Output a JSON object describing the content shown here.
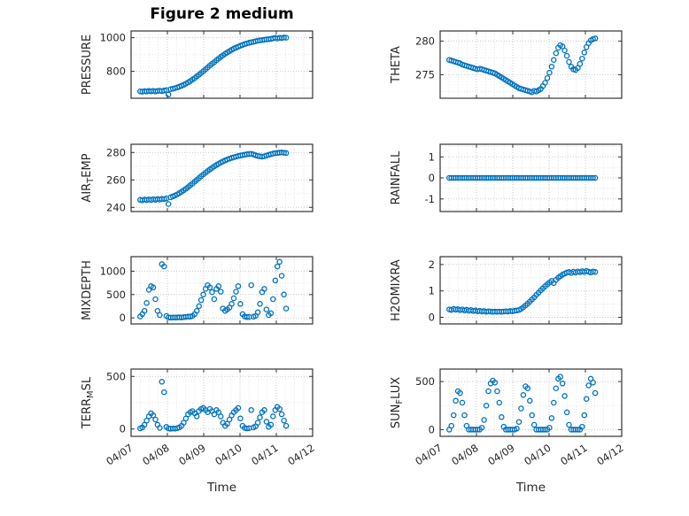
{
  "title": "Figure 2 medium",
  "figure": {
    "bg": "#ffffff",
    "marker_color": "#0072BD",
    "axis_color": "#333333",
    "grid_color": "#c9c9c9",
    "minor_grid_color": "#e7e7e7",
    "text_color": "#262626"
  },
  "chart_data": {
    "type": "scatter",
    "title": "Figure 2 medium",
    "xlabel": "Time",
    "x_tick_labels": [
      "04/07",
      "04/08",
      "04/09",
      "04/10",
      "04/11",
      "04/12"
    ],
    "xlim": [
      0,
      5
    ],
    "x_unit": "days since 04/07",
    "legend": "none",
    "grid": "on",
    "marker": "open-circle",
    "x": [
      0.25,
      0.31,
      0.37,
      0.43,
      0.49,
      0.55,
      0.61,
      0.67,
      0.73,
      0.79,
      0.85,
      0.91,
      0.97,
      1.03,
      1.09,
      1.15,
      1.21,
      1.27,
      1.33,
      1.39,
      1.45,
      1.51,
      1.57,
      1.63,
      1.69,
      1.75,
      1.81,
      1.87,
      1.93,
      1.99,
      2.05,
      2.11,
      2.17,
      2.23,
      2.29,
      2.35,
      2.41,
      2.47,
      2.53,
      2.59,
      2.65,
      2.71,
      2.77,
      2.83,
      2.89,
      2.95,
      3.01,
      3.07,
      3.13,
      3.19,
      3.25,
      3.31,
      3.37,
      3.43,
      3.49,
      3.55,
      3.61,
      3.67,
      3.73,
      3.79,
      3.85,
      3.91,
      3.97,
      4.03,
      4.09,
      4.15,
      4.21,
      4.27
    ],
    "subplots": [
      {
        "name": "PRESSURE",
        "col": 0,
        "row": 0,
        "ylabel": [
          {
            "text": "PRESSURE",
            "sub": false
          }
        ],
        "yticks": [
          800,
          1000
        ],
        "ylim": [
          640,
          1040
        ],
        "y": [
          681,
          679,
          682,
          680,
          683,
          681,
          684,
          680,
          683,
          685,
          682,
          686,
          688,
          662,
          694,
          697,
          700,
          704,
          709,
          714,
          720,
          727,
          734,
          742,
          751,
          760,
          770,
          780,
          790,
          801,
          812,
          823,
          834,
          845,
          855,
          866,
          876,
          886,
          895,
          904,
          912,
          920,
          928,
          935,
          941,
          947,
          952,
          957,
          962,
          966,
          970,
          973,
          976,
          979,
          982,
          984,
          986,
          988,
          990,
          991,
          993,
          996,
          999,
          995,
          1000,
          998,
          1001,
          1000
        ]
      },
      {
        "name": "THETA",
        "col": 1,
        "row": 0,
        "ylabel": [
          {
            "text": "THETA",
            "sub": false
          }
        ],
        "yticks": [
          275,
          280
        ],
        "ylim": [
          271.5,
          281.5
        ],
        "y": [
          277.2,
          277.1,
          277.0,
          276.9,
          276.8,
          276.7,
          276.5,
          276.4,
          276.3,
          276.2,
          276.1,
          276.0,
          275.9,
          275.8,
          275.9,
          275.8,
          275.7,
          275.6,
          275.5,
          275.4,
          275.3,
          275.2,
          275.0,
          274.8,
          274.6,
          274.4,
          274.2,
          274.0,
          273.8,
          273.6,
          273.4,
          273.2,
          273.0,
          272.9,
          272.8,
          272.7,
          272.6,
          272.5,
          272.4,
          272.6,
          272.5,
          272.7,
          272.9,
          273.3,
          273.8,
          274.5,
          275.3,
          276.2,
          277.2,
          278.2,
          279.0,
          279.4,
          279.2,
          278.6,
          277.8,
          276.9,
          276.2,
          275.8,
          275.7,
          276.0,
          276.6,
          277.4,
          278.3,
          279.1,
          279.7,
          280.1,
          280.3,
          280.4
        ]
      },
      {
        "name": "AIR_TEMP",
        "col": 0,
        "row": 1,
        "ylabel": [
          {
            "text": "AIR",
            "sub": false
          },
          {
            "text": "T",
            "sub": true
          },
          {
            "text": "EMP",
            "sub": false
          }
        ],
        "yticks": [
          240,
          260,
          280
        ],
        "ylim": [
          237,
          286
        ],
        "y": [
          245.5,
          245.2,
          245.8,
          245.3,
          245.9,
          245.4,
          246.0,
          245.6,
          246.1,
          245.8,
          246.3,
          246.0,
          246.5,
          242.5,
          247.4,
          248.0,
          248.7,
          249.5,
          250.4,
          251.4,
          252.5,
          253.6,
          254.8,
          256.1,
          257.4,
          258.7,
          260.0,
          261.4,
          262.7,
          264.0,
          265.3,
          266.5,
          267.7,
          268.8,
          269.9,
          270.9,
          271.8,
          272.7,
          273.5,
          274.2,
          274.9,
          275.5,
          276.1,
          276.6,
          277.0,
          277.4,
          277.8,
          278.1,
          278.4,
          278.7,
          278.9,
          279.1,
          278.6,
          278.0,
          277.5,
          277.2,
          277.0,
          277.3,
          277.8,
          278.3,
          278.8,
          279.2,
          279.5,
          279.7,
          279.9,
          280.0,
          279.8,
          279.6
        ]
      },
      {
        "name": "RAINFALL",
        "col": 1,
        "row": 1,
        "ylabel": [
          {
            "text": "RAINFALL",
            "sub": false
          }
        ],
        "yticks": [
          -1,
          0,
          1
        ],
        "ylim": [
          -1.6,
          1.6
        ],
        "y": [
          0,
          0,
          0,
          0,
          0,
          0,
          0,
          0,
          0,
          0,
          0,
          0,
          0,
          0,
          0,
          0,
          0,
          0,
          0,
          0,
          0,
          0,
          0,
          0,
          0,
          0,
          0,
          0,
          0,
          0,
          0,
          0,
          0,
          0,
          0,
          0,
          0,
          0,
          0,
          0,
          0,
          0,
          0,
          0,
          0,
          0,
          0,
          0,
          0,
          0,
          0,
          0,
          0,
          0,
          0,
          0,
          0,
          0,
          0,
          0,
          0,
          0,
          0,
          0,
          0,
          0,
          0,
          0
        ]
      },
      {
        "name": "MIXDEPTH",
        "col": 0,
        "row": 2,
        "ylabel": [
          {
            "text": "MIXDEPTH",
            "sub": false
          }
        ],
        "yticks": [
          0,
          500,
          1000
        ],
        "ylim": [
          -130,
          1310
        ],
        "y": [
          30,
          80,
          150,
          320,
          600,
          680,
          650,
          400,
          150,
          60,
          1150,
          1100,
          40,
          10,
          5,
          8,
          6,
          10,
          12,
          8,
          15,
          20,
          30,
          25,
          40,
          80,
          150,
          250,
          380,
          500,
          620,
          700,
          650,
          550,
          400,
          620,
          680,
          560,
          200,
          150,
          180,
          220,
          300,
          420,
          560,
          680,
          300,
          80,
          30,
          15,
          20,
          700,
          25,
          40,
          120,
          300,
          550,
          620,
          180,
          60,
          100,
          400,
          800,
          1100,
          1200,
          900,
          500,
          200
        ]
      },
      {
        "name": "H2OMIXRA",
        "col": 1,
        "row": 2,
        "ylabel": [
          {
            "text": "H2OMIXRA",
            "sub": false
          }
        ],
        "yticks": [
          0,
          1,
          2
        ],
        "ylim": [
          -0.25,
          2.3
        ],
        "y": [
          0.3,
          0.28,
          0.32,
          0.29,
          0.31,
          0.27,
          0.3,
          0.26,
          0.29,
          0.25,
          0.28,
          0.24,
          0.26,
          0.23,
          0.25,
          0.22,
          0.24,
          0.21,
          0.23,
          0.22,
          0.21,
          0.22,
          0.21,
          0.22,
          0.21,
          0.22,
          0.23,
          0.22,
          0.24,
          0.23,
          0.25,
          0.26,
          0.28,
          0.32,
          0.38,
          0.45,
          0.52,
          0.6,
          0.68,
          0.76,
          0.85,
          0.93,
          1.02,
          1.1,
          1.18,
          1.25,
          1.32,
          1.38,
          1.3,
          1.42,
          1.5,
          1.56,
          1.62,
          1.66,
          1.7,
          1.72,
          1.68,
          1.73,
          1.7,
          1.74,
          1.71,
          1.75,
          1.72,
          1.76,
          1.73,
          1.7,
          1.74,
          1.72
        ]
      },
      {
        "name": "TERR_MSL",
        "col": 0,
        "row": 3,
        "ylabel": [
          {
            "text": "TERR",
            "sub": false
          },
          {
            "text": "M",
            "sub": true
          },
          {
            "text": "SL",
            "sub": false
          }
        ],
        "yticks": [
          0,
          500
        ],
        "ylim": [
          -70,
          570
        ],
        "y": [
          5,
          15,
          40,
          80,
          120,
          150,
          130,
          90,
          40,
          10,
          450,
          350,
          20,
          5,
          2,
          5,
          3,
          8,
          15,
          30,
          60,
          100,
          140,
          160,
          170,
          150,
          120,
          170,
          190,
          200,
          180,
          160,
          190,
          170,
          140,
          180,
          160,
          120,
          60,
          30,
          50,
          90,
          130,
          160,
          180,
          200,
          100,
          30,
          10,
          5,
          8,
          180,
          15,
          25,
          60,
          110,
          160,
          180,
          70,
          20,
          40,
          120,
          180,
          210,
          190,
          140,
          80,
          30
        ]
      },
      {
        "name": "SUN_FLUX",
        "col": 1,
        "row": 3,
        "ylabel": [
          {
            "text": "SUN",
            "sub": false
          },
          {
            "text": "F",
            "sub": true
          },
          {
            "text": "LUX",
            "sub": false
          }
        ],
        "yticks": [
          0,
          500
        ],
        "ylim": [
          -70,
          630
        ],
        "y": [
          0,
          40,
          150,
          300,
          400,
          380,
          280,
          150,
          40,
          0,
          0,
          0,
          0,
          0,
          0,
          20,
          100,
          250,
          400,
          480,
          510,
          490,
          400,
          280,
          130,
          30,
          0,
          0,
          0,
          0,
          0,
          10,
          80,
          220,
          360,
          450,
          430,
          300,
          150,
          50,
          0,
          0,
          0,
          0,
          0,
          0,
          20,
          120,
          280,
          430,
          530,
          550,
          480,
          350,
          180,
          50,
          0,
          0,
          0,
          0,
          0,
          30,
          150,
          320,
          460,
          530,
          490,
          380
        ]
      }
    ]
  }
}
